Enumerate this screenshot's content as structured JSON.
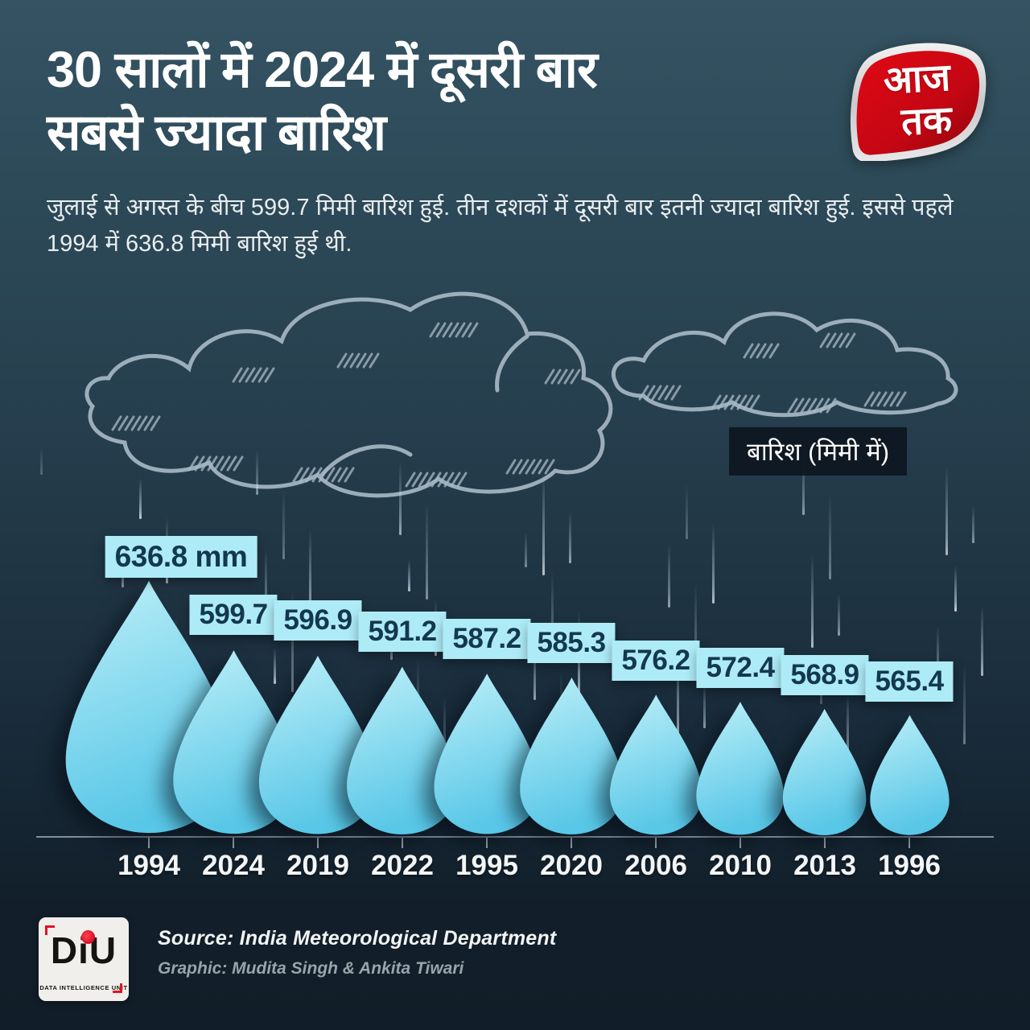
{
  "header": {
    "title_line1": "30 सालों में 2024 में दूसरी बार",
    "title_line2": "सबसे ज्यादा बारिश",
    "subtitle": "जुलाई से अगस्त के बीच 599.7 मिमी बारिश हुई. तीन दशकों में दूसरी बार इतनी ज्यादा बारिश हुई. इससे पहले 1994 में 636.8 मिमी बारिश हुई थी."
  },
  "brand": {
    "name": "Aaj Tak",
    "word_top": "आज",
    "word_bottom": "तक",
    "red": "#c40713"
  },
  "chart_data": {
    "type": "bar",
    "title": "30 सालों में 2024 में दूसरी बार सबसे ज्यादा बारिश",
    "legend_label": "बारिश (मिमी में)",
    "unit": "mm",
    "categories": [
      "1994",
      "2024",
      "2019",
      "2022",
      "1995",
      "2020",
      "2006",
      "2010",
      "2013",
      "1996"
    ],
    "values": [
      636.8,
      599.7,
      596.9,
      591.2,
      587.2,
      585.3,
      576.2,
      572.4,
      568.9,
      565.4
    ],
    "value_labels": [
      "636.8 mm",
      "599.7",
      "596.9",
      "591.2",
      "587.2",
      "585.3",
      "576.2",
      "572.4",
      "568.9",
      "565.4"
    ],
    "ylim": [
      560,
      640
    ],
    "grid": false,
    "legend_position": "right-above-chart",
    "mark_shape": "water-drop",
    "mark_color_top": "#bdeff8",
    "mark_color_bottom": "#59c7e7"
  },
  "footer": {
    "source": "Source: India Meteorological Department",
    "credit": "Graphic: Mudita Singh & Ankita Tiwari",
    "diu_word": "DU",
    "diu_sub": "DATA INTELLIGENCE UNIT"
  }
}
